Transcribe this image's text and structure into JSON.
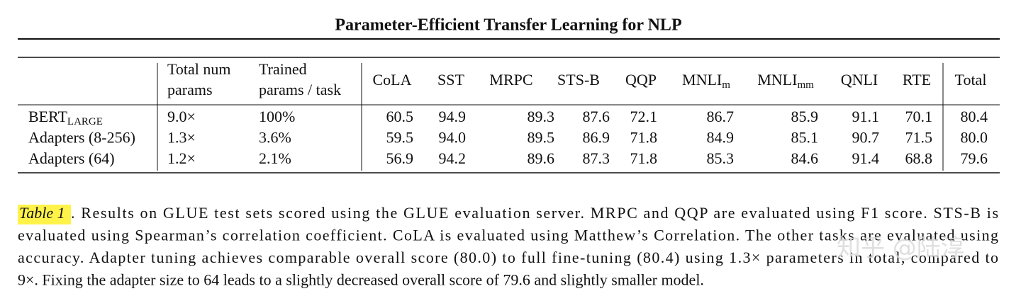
{
  "header": {
    "title": "Parameter-Efficient Transfer Learning for NLP"
  },
  "table": {
    "columns": [
      {
        "lines": [
          "Total num",
          "params"
        ]
      },
      {
        "lines": [
          "Trained",
          "params / task"
        ]
      },
      {
        "text": "CoLA"
      },
      {
        "text": "SST"
      },
      {
        "text": "MRPC"
      },
      {
        "text": "STS-B"
      },
      {
        "text": "QQP"
      },
      {
        "text": "MNLI",
        "sub": "m"
      },
      {
        "text": "MNLI",
        "sub": "mm"
      },
      {
        "text": "QNLI"
      },
      {
        "text": "RTE"
      },
      {
        "text": "Total"
      }
    ],
    "rows": [
      {
        "label": {
          "text": "BERT",
          "sub": "LARGE"
        },
        "cells": [
          "9.0×",
          "100%",
          "60.5",
          "94.9",
          "89.3",
          "87.6",
          "72.1",
          "86.7",
          "85.9",
          "91.1",
          "70.1",
          "80.4"
        ]
      },
      {
        "label": {
          "text": "Adapters (8-256)"
        },
        "cells": [
          "1.3×",
          "3.6%",
          "59.5",
          "94.0",
          "89.5",
          "86.9",
          "71.8",
          "84.9",
          "85.1",
          "90.7",
          "71.5",
          "80.0"
        ]
      },
      {
        "label": {
          "text": "Adapters (64)"
        },
        "cells": [
          "1.2×",
          "2.1%",
          "56.9",
          "94.2",
          "89.6",
          "87.3",
          "71.8",
          "85.3",
          "84.6",
          "91.4",
          "68.8",
          "79.6"
        ]
      }
    ]
  },
  "caption": {
    "label": "Table 1",
    "lines": [
      ". Results on GLUE test sets scored using the GLUE evaluation server. MRPC and QQP are evaluated using F1 score. STS-B is",
      "evaluated using Spearman’s correlation coefficient. CoLA is evaluated using Matthew’s Correlation. The other tasks are evaluated using",
      "accuracy. Adapter tuning achieves comparable overall score (80.0) to full fine-tuning (80.4) using 1.3× parameters in total, compared to",
      "9×. Fixing the adapter size to 64 leads to a slightly decreased overall score of 79.6 and slightly smaller model."
    ]
  },
  "watermark": "知乎 @陆淳"
}
